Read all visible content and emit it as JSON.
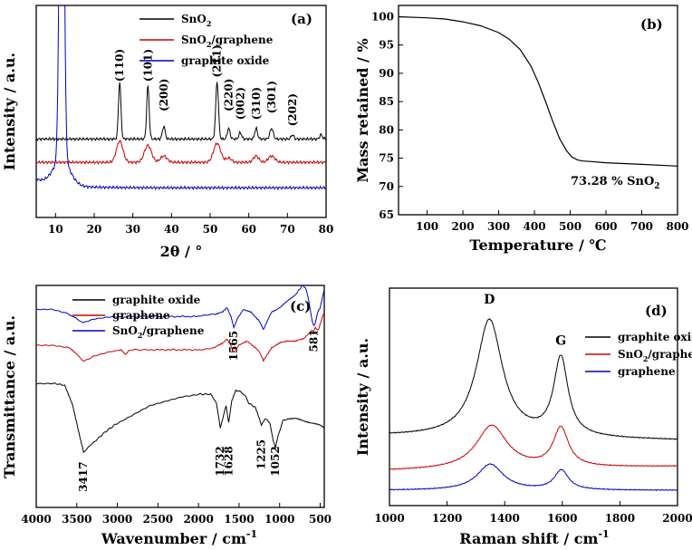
{
  "chart_data": [
    {
      "id": "a",
      "type": "line",
      "panel_label": "(a)",
      "xlabel": "2θ / °",
      "ylabel": "Intensity / a.u.",
      "xlim": [
        5,
        80
      ],
      "ylim": [
        0,
        100
      ],
      "x_ticks": [
        10,
        20,
        30,
        40,
        50,
        60,
        70,
        80
      ],
      "legend": [
        {
          "label": "SnO",
          "sub": "2",
          "tail": "",
          "color": "#000000"
        },
        {
          "label": "SnO",
          "sub": "2",
          "tail": "/graphene",
          "color": "#cc0000"
        },
        {
          "label": "graphite oxide",
          "sub": "",
          "tail": "",
          "color": "#0000cc"
        }
      ],
      "peak_labels": [
        {
          "text": "(110)",
          "x": 26.6,
          "y": 64
        },
        {
          "text": "(101)",
          "x": 33.9,
          "y": 64
        },
        {
          "text": "(200)",
          "x": 38.0,
          "y": 50
        },
        {
          "text": "(211)",
          "x": 51.8,
          "y": 66
        },
        {
          "text": "(220)",
          "x": 54.8,
          "y": 50
        },
        {
          "text": "(002)",
          "x": 57.8,
          "y": 46
        },
        {
          "text": "(310)",
          "x": 61.9,
          "y": 46
        },
        {
          "text": "(301)",
          "x": 65.9,
          "y": 49
        },
        {
          "text": "(202)",
          "x": 71.3,
          "y": 43
        }
      ],
      "series": [
        {
          "name": "SnO2",
          "color": "#000000",
          "baseline": 37,
          "peaks": [
            [
              26.6,
              27,
              0.45
            ],
            [
              33.9,
              25,
              0.45
            ],
            [
              38.0,
              6,
              0.5
            ],
            [
              51.8,
              27,
              0.5
            ],
            [
              54.8,
              5,
              0.5
            ],
            [
              57.8,
              3,
              0.5
            ],
            [
              61.9,
              5,
              0.5
            ],
            [
              65.9,
              5,
              0.6
            ],
            [
              71.3,
              2,
              0.5
            ],
            [
              78.7,
              2,
              0.5
            ]
          ]
        },
        {
          "name": "SnO2/graphene",
          "color": "#cc0000",
          "baseline": 26,
          "peaks": [
            [
              26.6,
              10,
              1.2
            ],
            [
              33.9,
              8,
              1.3
            ],
            [
              38.0,
              3,
              1.2
            ],
            [
              51.8,
              9,
              1.3
            ],
            [
              54.8,
              2,
              1.0
            ],
            [
              61.9,
              3,
              1.0
            ],
            [
              65.9,
              3,
              1.2
            ]
          ]
        },
        {
          "name": "graphite oxide",
          "color": "#0000cc",
          "baseline": 14,
          "peaks": [
            [
              11.6,
              240,
              0.75
            ],
            [
              11.6,
              12,
              3.0
            ]
          ]
        }
      ]
    },
    {
      "id": "b",
      "type": "line",
      "panel_label": "(b)",
      "xlabel": "Temperature / ℃",
      "ylabel": "Mass retained / %",
      "xlim": [
        20,
        800
      ],
      "ylim": [
        65,
        102
      ],
      "x_ticks": [
        100,
        200,
        300,
        400,
        500,
        600,
        700,
        800
      ],
      "y_ticks": [
        65,
        70,
        75,
        80,
        85,
        90,
        95,
        100
      ],
      "annotation": {
        "text": "73.28 % SnO",
        "sub": "2",
        "x": 530,
        "y": 71.8
      },
      "series": [
        {
          "name": "TGA",
          "color": "#000000",
          "x": [
            20,
            100,
            150,
            200,
            250,
            300,
            330,
            360,
            390,
            410,
            430,
            450,
            470,
            490,
            505,
            520,
            535,
            560,
            600,
            700,
            800
          ],
          "y": [
            100.0,
            99.8,
            99.6,
            99.1,
            98.4,
            97.2,
            96.0,
            94.2,
            91.3,
            88.5,
            85.2,
            81.7,
            78.5,
            76.3,
            75.2,
            74.7,
            74.5,
            74.4,
            74.2,
            73.9,
            73.6
          ]
        }
      ]
    },
    {
      "id": "c",
      "type": "line",
      "panel_label": "(c)",
      "xlabel": "Wavenumber / cm",
      "xlabel_sup": "-1",
      "ylabel": "Transmittance / a.u.",
      "xlim": [
        4000,
        450
      ],
      "ylim": [
        0,
        100
      ],
      "x_ticks": [
        4000,
        3500,
        3000,
        2500,
        2000,
        1500,
        1000,
        500
      ],
      "legend": [
        {
          "label": "graphite oxide",
          "sub": "",
          "tail": "",
          "color": "#000000"
        },
        {
          "label": "graphene",
          "sub": "",
          "tail": "",
          "color": "#cc0000"
        },
        {
          "label": "SnO",
          "sub": "2",
          "tail": "/graphene",
          "color": "#0000cc"
        }
      ],
      "peak_labels": [
        {
          "text": "1565",
          "x": 1565,
          "y": 66,
          "rotate": true
        },
        {
          "text": "581",
          "x": 581,
          "y": 70,
          "rotate": true
        },
        {
          "text": "1732",
          "x": 1732,
          "y": 14,
          "rotate": true
        },
        {
          "text": "1628",
          "x": 1628,
          "y": 14,
          "rotate": true
        },
        {
          "text": "1225",
          "x": 1225,
          "y": 17,
          "rotate": true
        },
        {
          "text": "1052",
          "x": 1052,
          "y": 14,
          "rotate": true
        },
        {
          "text": "3417",
          "x": 3417,
          "y": 7,
          "rotate": true
        }
      ],
      "series": [
        {
          "name": "graphite oxide",
          "color": "#000000",
          "baseline": 52,
          "x": [
            4000,
            3800,
            3650,
            3550,
            3450,
            3417,
            3300,
            3150,
            3000,
            2800,
            2600,
            2400,
            2200,
            2000,
            1850,
            1780,
            1732,
            1700,
            1660,
            1628,
            1590,
            1540,
            1480,
            1420,
            1380,
            1300,
            1250,
            1225,
            1180,
            1120,
            1080,
            1052,
            1020,
            960,
            900,
            800,
            700,
            600,
            500,
            450
          ],
          "y": [
            56,
            56,
            55,
            46,
            30,
            25,
            29,
            34,
            38,
            42,
            46,
            48,
            50,
            51,
            51,
            47,
            36,
            40,
            46,
            38,
            48,
            53,
            52,
            50,
            47,
            45,
            40,
            37,
            40,
            38,
            30,
            27,
            32,
            39,
            40,
            40,
            39,
            38,
            37,
            36
          ]
        },
        {
          "name": "graphene",
          "color": "#cc0000",
          "baseline": 66,
          "x": [
            4000,
            3800,
            3600,
            3500,
            3417,
            3300,
            3100,
            2950,
            2900,
            2850,
            2600,
            2300,
            2000,
            1800,
            1700,
            1650,
            1600,
            1565,
            1500,
            1400,
            1300,
            1250,
            1200,
            1150,
            1100,
            1000,
            900,
            800,
            700,
            650,
            600,
            581,
            560,
            520,
            480,
            450
          ],
          "y": [
            73,
            73,
            72,
            69,
            66,
            68,
            70,
            71,
            69,
            71,
            71,
            71,
            71,
            72,
            74,
            76,
            73,
            70,
            73,
            75,
            72,
            70,
            66,
            69,
            72,
            74,
            75,
            75,
            76,
            78,
            80,
            79,
            81,
            80,
            85,
            88
          ]
        },
        {
          "name": "SnO2/graphene",
          "color": "#0000cc",
          "baseline": 82,
          "x": [
            4000,
            3800,
            3600,
            3500,
            3417,
            3300,
            3100,
            2900,
            2600,
            2300,
            2000,
            1800,
            1700,
            1650,
            1600,
            1565,
            1520,
            1450,
            1350,
            1250,
            1200,
            1150,
            1100,
            1000,
            900,
            800,
            720,
            680,
            640,
            600,
            581,
            560,
            530,
            500,
            470,
            450
          ],
          "y": [
            89,
            89,
            87,
            85,
            83,
            85,
            86,
            86,
            86,
            86,
            86,
            87,
            88,
            90,
            86,
            81,
            85,
            89,
            88,
            84,
            80,
            84,
            88,
            90,
            93,
            96,
            100,
            99,
            93,
            84,
            82,
            83,
            88,
            90,
            95,
            98
          ]
        }
      ]
    },
    {
      "id": "d",
      "type": "line",
      "panel_label": "(d)",
      "xlabel": "Raman shift / cm",
      "xlabel_sup": "-1",
      "ylabel": "Intensity / a.u.",
      "xlim": [
        1000,
        2000
      ],
      "ylim": [
        0,
        100
      ],
      "x_ticks": [
        1000,
        1200,
        1400,
        1600,
        1800,
        2000
      ],
      "band_labels": [
        {
          "text": "D",
          "x": 1347,
          "y": 93
        },
        {
          "text": "G",
          "x": 1595,
          "y": 74
        }
      ],
      "legend": [
        {
          "label": "graphite oxide",
          "sub": "",
          "tail": "",
          "color": "#000000"
        },
        {
          "label": "SnO",
          "sub": "2",
          "tail": "/graphene",
          "color": "#cc0000"
        },
        {
          "label": "graphene",
          "sub": "",
          "tail": "",
          "color": "#0000cc"
        }
      ],
      "series": [
        {
          "name": "graphite oxide",
          "color": "#000000",
          "base_start": 32,
          "base_end": 30,
          "D": [
            1347,
            54,
            55
          ],
          "G": [
            1595,
            36,
            30
          ]
        },
        {
          "name": "SnO2/graphene",
          "color": "#cc0000",
          "base_start": 16,
          "base_end": 18,
          "D": [
            1355,
            20,
            65
          ],
          "G": [
            1595,
            18,
            32
          ]
        },
        {
          "name": "graphene",
          "color": "#0000cc",
          "base_start": 7,
          "base_end": 7,
          "D": [
            1350,
            12,
            55
          ],
          "G": [
            1597,
            9,
            30
          ]
        }
      ]
    }
  ]
}
